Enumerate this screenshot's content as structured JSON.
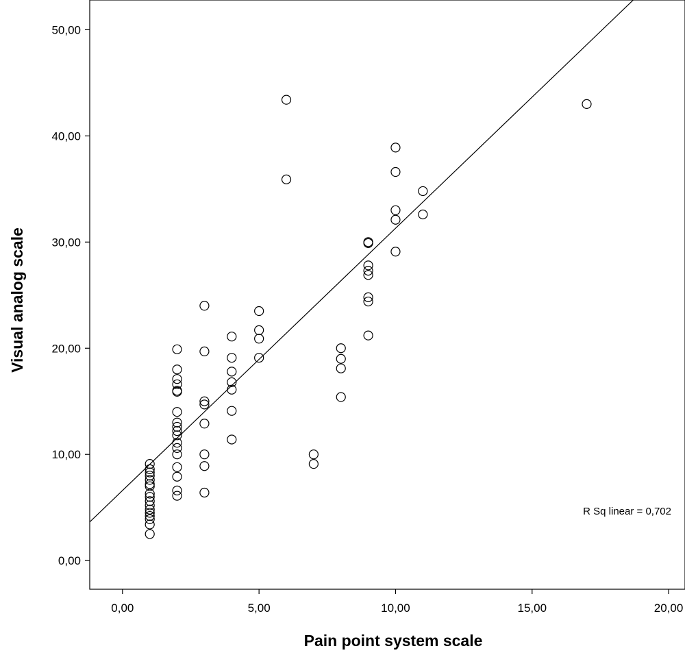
{
  "chart_data": {
    "type": "scatter",
    "title": "",
    "xlabel": "Pain point system scale",
    "ylabel": "Visual analog scale",
    "xlim": [
      -1.2,
      20.6
    ],
    "ylim": [
      -2.7,
      52.8
    ],
    "x_ticks": [
      0,
      5,
      10,
      15,
      20
    ],
    "x_tick_labels": [
      "0,00",
      "5,00",
      "10,00",
      "15,00",
      "20,00"
    ],
    "y_ticks": [
      0,
      10,
      20,
      30,
      40,
      50
    ],
    "y_tick_labels": [
      "0,00",
      "10,00",
      "20,00",
      "30,00",
      "40,00",
      "50,00"
    ],
    "grid": false,
    "annotation": "R Sq linear = 0,702",
    "fit_line": {
      "slope": 2.47,
      "intercept": 6.6
    },
    "points": [
      {
        "x": 1,
        "y": 9.1
      },
      {
        "x": 1,
        "y": 8.6
      },
      {
        "x": 1,
        "y": 8.3
      },
      {
        "x": 1,
        "y": 8.0
      },
      {
        "x": 1,
        "y": 7.6
      },
      {
        "x": 1,
        "y": 7.2
      },
      {
        "x": 1,
        "y": 7.0
      },
      {
        "x": 1,
        "y": 6.3
      },
      {
        "x": 1,
        "y": 6.0
      },
      {
        "x": 1,
        "y": 5.6
      },
      {
        "x": 1,
        "y": 5.2
      },
      {
        "x": 1,
        "y": 4.8
      },
      {
        "x": 1,
        "y": 4.5
      },
      {
        "x": 1,
        "y": 4.2
      },
      {
        "x": 1,
        "y": 3.9
      },
      {
        "x": 1,
        "y": 3.4
      },
      {
        "x": 1,
        "y": 2.5
      },
      {
        "x": 2,
        "y": 19.9
      },
      {
        "x": 2,
        "y": 18.0
      },
      {
        "x": 2,
        "y": 17.1
      },
      {
        "x": 2,
        "y": 16.6
      },
      {
        "x": 2,
        "y": 16.0
      },
      {
        "x": 2,
        "y": 15.9
      },
      {
        "x": 2,
        "y": 14.0
      },
      {
        "x": 2,
        "y": 13.0
      },
      {
        "x": 2,
        "y": 12.6
      },
      {
        "x": 2,
        "y": 12.2
      },
      {
        "x": 2,
        "y": 11.8
      },
      {
        "x": 2,
        "y": 11.1
      },
      {
        "x": 2,
        "y": 10.6
      },
      {
        "x": 2,
        "y": 10.0
      },
      {
        "x": 2,
        "y": 8.8
      },
      {
        "x": 2,
        "y": 7.9
      },
      {
        "x": 2,
        "y": 6.6
      },
      {
        "x": 2,
        "y": 6.1
      },
      {
        "x": 3,
        "y": 24.0
      },
      {
        "x": 3,
        "y": 19.7
      },
      {
        "x": 3,
        "y": 15.0
      },
      {
        "x": 3,
        "y": 14.7
      },
      {
        "x": 3,
        "y": 12.9
      },
      {
        "x": 3,
        "y": 10.0
      },
      {
        "x": 3,
        "y": 8.9
      },
      {
        "x": 3,
        "y": 6.4
      },
      {
        "x": 4,
        "y": 21.1
      },
      {
        "x": 4,
        "y": 19.1
      },
      {
        "x": 4,
        "y": 17.8
      },
      {
        "x": 4,
        "y": 16.8
      },
      {
        "x": 4,
        "y": 16.1
      },
      {
        "x": 4,
        "y": 14.1
      },
      {
        "x": 4,
        "y": 11.4
      },
      {
        "x": 5,
        "y": 23.5
      },
      {
        "x": 5,
        "y": 21.7
      },
      {
        "x": 5,
        "y": 20.9
      },
      {
        "x": 5,
        "y": 19.1
      },
      {
        "x": 6,
        "y": 43.4
      },
      {
        "x": 6,
        "y": 35.9
      },
      {
        "x": 7,
        "y": 10.0
      },
      {
        "x": 7,
        "y": 9.1
      },
      {
        "x": 8,
        "y": 20.0
      },
      {
        "x": 8,
        "y": 19.0
      },
      {
        "x": 8,
        "y": 18.1
      },
      {
        "x": 8,
        "y": 15.4
      },
      {
        "x": 9,
        "y": 30.0
      },
      {
        "x": 9,
        "y": 29.9
      },
      {
        "x": 9,
        "y": 27.8
      },
      {
        "x": 9,
        "y": 27.3
      },
      {
        "x": 9,
        "y": 26.9
      },
      {
        "x": 9,
        "y": 24.8
      },
      {
        "x": 9,
        "y": 24.4
      },
      {
        "x": 9,
        "y": 21.2
      },
      {
        "x": 10,
        "y": 38.9
      },
      {
        "x": 10,
        "y": 36.6
      },
      {
        "x": 10,
        "y": 33.0
      },
      {
        "x": 10,
        "y": 32.1
      },
      {
        "x": 10,
        "y": 29.1
      },
      {
        "x": 11,
        "y": 34.8
      },
      {
        "x": 11,
        "y": 32.6
      },
      {
        "x": 17,
        "y": 43.0
      }
    ]
  }
}
